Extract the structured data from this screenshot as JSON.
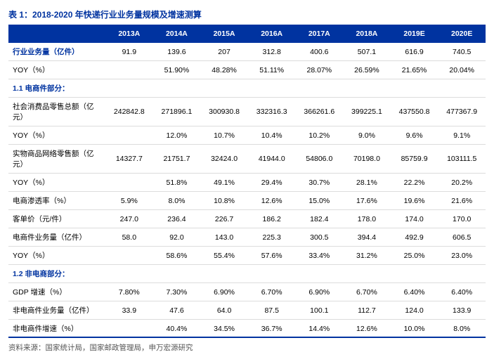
{
  "title": "表 1：2018-2020 年快递行业业务量规模及增速测算",
  "columns": [
    "",
    "2013A",
    "2014A",
    "2015A",
    "2016A",
    "2017A",
    "2018A",
    "2019E",
    "2020E"
  ],
  "rows": [
    {
      "label": "行业业务量（亿件）",
      "vals": [
        "91.9",
        "139.6",
        "207",
        "312.8",
        "400.6",
        "507.1",
        "616.9",
        "740.5"
      ],
      "cls": "hdr-row"
    },
    {
      "label": "YOY（%）",
      "vals": [
        "",
        "51.90%",
        "48.28%",
        "51.11%",
        "28.07%",
        "26.59%",
        "21.65%",
        "20.04%"
      ]
    },
    {
      "label": "1.1 电商件部分：",
      "vals": [
        "",
        "",
        "",
        "",
        "",
        "",
        "",
        ""
      ],
      "cls": "section-row"
    },
    {
      "label": "社会消费品零售总额（亿元）",
      "vals": [
        "242842.8",
        "271896.1",
        "300930.8",
        "332316.3",
        "366261.6",
        "399225.1",
        "437550.8",
        "477367.9"
      ]
    },
    {
      "label": "YOY（%）",
      "vals": [
        "",
        "12.0%",
        "10.7%",
        "10.4%",
        "10.2%",
        "9.0%",
        "9.6%",
        "9.1%"
      ]
    },
    {
      "label": "实物商品网络零售额（亿元）",
      "vals": [
        "14327.7",
        "21751.7",
        "32424.0",
        "41944.0",
        "54806.0",
        "70198.0",
        "85759.9",
        "103111.5"
      ]
    },
    {
      "label": "YOY（%）",
      "vals": [
        "",
        "51.8%",
        "49.1%",
        "29.4%",
        "30.7%",
        "28.1%",
        "22.2%",
        "20.2%"
      ]
    },
    {
      "label": "电商渗透率（%）",
      "vals": [
        "5.9%",
        "8.0%",
        "10.8%",
        "12.6%",
        "15.0%",
        "17.6%",
        "19.6%",
        "21.6%"
      ]
    },
    {
      "label": "客单价（元/件）",
      "vals": [
        "247.0",
        "236.4",
        "226.7",
        "186.2",
        "182.4",
        "178.0",
        "174.0",
        "170.0"
      ]
    },
    {
      "label": "电商件业务量（亿件）",
      "vals": [
        "58.0",
        "92.0",
        "143.0",
        "225.3",
        "300.5",
        "394.4",
        "492.9",
        "606.5"
      ]
    },
    {
      "label": "YOY（%）",
      "vals": [
        "",
        "58.6%",
        "55.4%",
        "57.6%",
        "33.4%",
        "31.2%",
        "25.0%",
        "23.0%"
      ]
    },
    {
      "label": "1.2  非电商部分：",
      "vals": [
        "",
        "",
        "",
        "",
        "",
        "",
        "",
        ""
      ],
      "cls": "section-row"
    },
    {
      "label": "GDP 增速（%）",
      "vals": [
        "7.80%",
        "7.30%",
        "6.90%",
        "6.70%",
        "6.90%",
        "6.70%",
        "6.40%",
        "6.40%"
      ]
    },
    {
      "label": "非电商件业务量（亿件）",
      "vals": [
        "33.9",
        "47.6",
        "64.0",
        "87.5",
        "100.1",
        "112.7",
        "124.0",
        "133.9"
      ]
    },
    {
      "label": "非电商件增速（%）",
      "vals": [
        "",
        "40.4%",
        "34.5%",
        "36.7%",
        "14.4%",
        "12.6%",
        "10.0%",
        "8.0%"
      ]
    }
  ],
  "source": "资料来源：国家统计局，国家邮政管理局，申万宏源研究"
}
